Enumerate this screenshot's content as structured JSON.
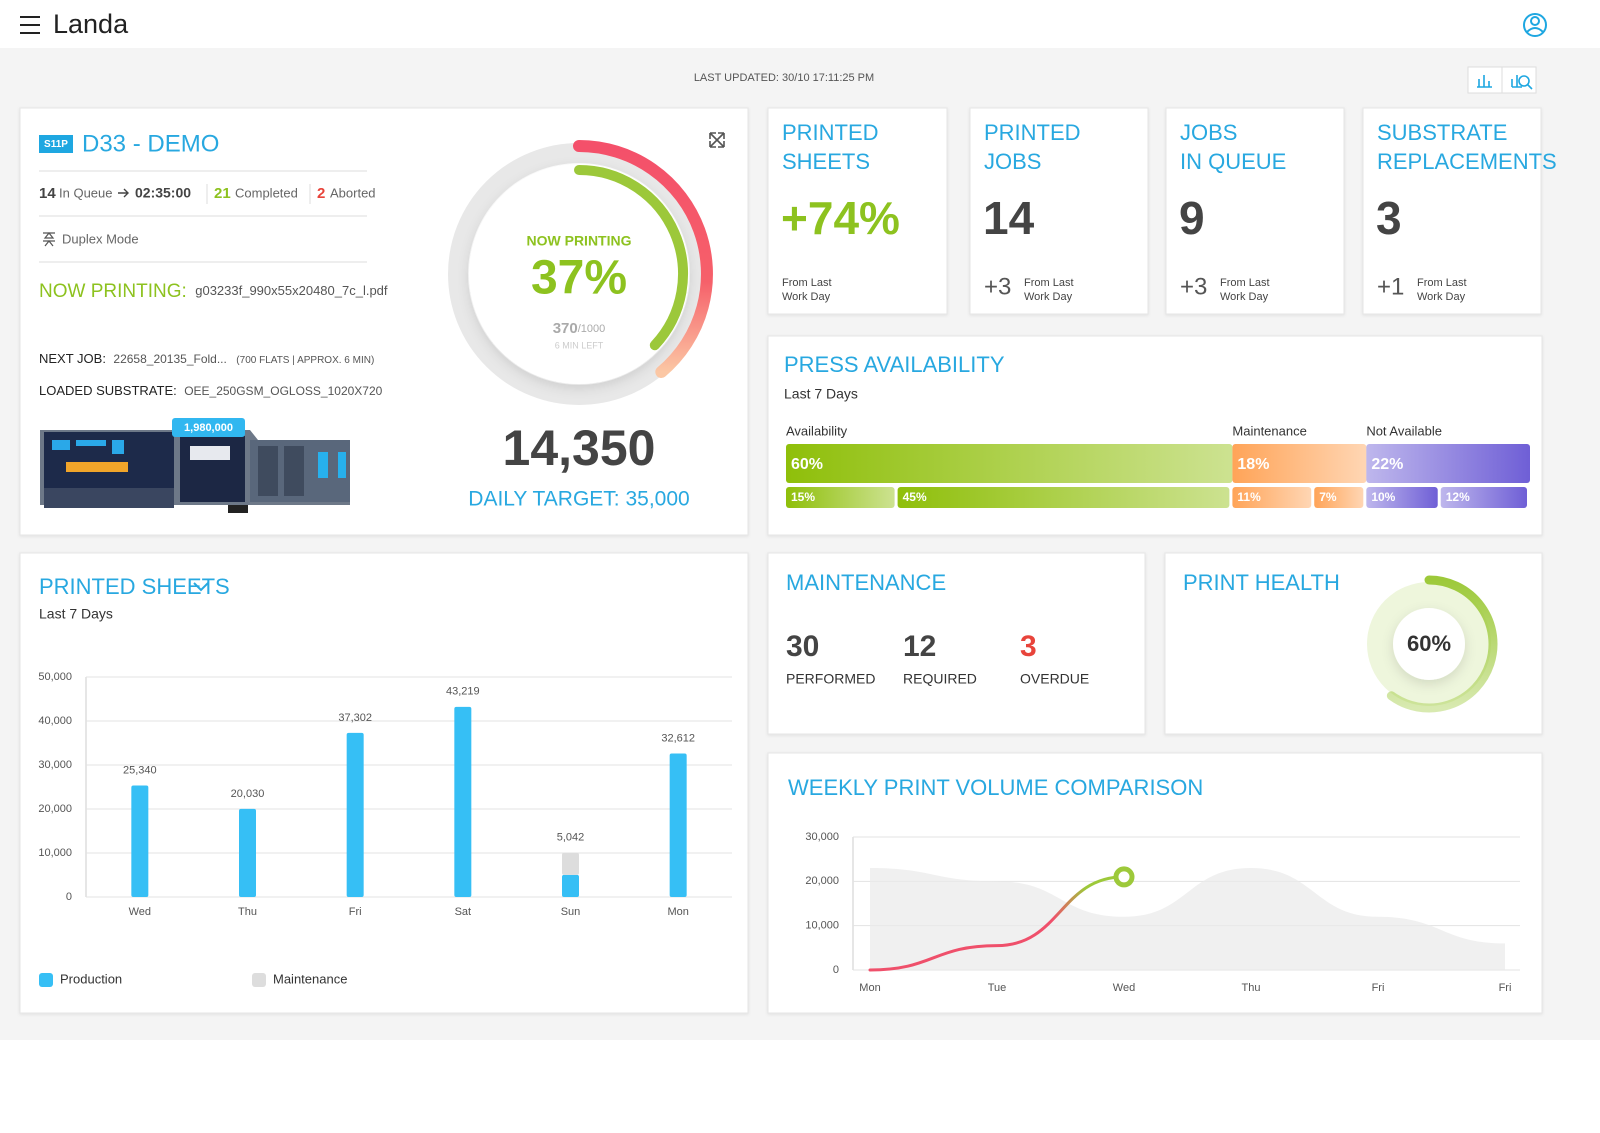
{
  "header": {
    "brand": "Landa"
  },
  "last_updated": "LAST UPDATED: 30/10 17:11:25 PM",
  "press": {
    "badge": "S11P",
    "name": "D33 - DEMO",
    "in_queue": 14,
    "in_queue_label": "In Queue",
    "time": "02:35:00",
    "completed": 21,
    "completed_label": "Completed",
    "aborted": 2,
    "aborted_label": "Aborted",
    "mode": "Duplex Mode",
    "now_printing_label": "NOW PRINTING:",
    "now_printing_file": "g03233f_990x55x20480_7c_l.pdf",
    "next_job_label": "NEXT JOB:",
    "next_job": "22658_20135_Fold...",
    "next_job_detail": "(700 FLATS | APPROX. 6 MIN)",
    "substrate_label": "LOADED SUBSTRATE:",
    "substrate": "OEE_250GSM_OGLOSS_1020X720",
    "counter": "1,980,000",
    "gauge": {
      "label": "NOW PRINTING",
      "percent": 37,
      "percent_label": "37%",
      "done": 370,
      "total_label": "/1000",
      "time_left": "6 MIN LEFT",
      "color": "#9cc83a"
    },
    "sheets": "14,350",
    "target": "DAILY TARGET: 35,000"
  },
  "kpis": [
    {
      "title": [
        "PRINTED",
        "SHEETS"
      ],
      "value": "+74%",
      "note": [
        "From Last",
        "Work Day"
      ],
      "color": "#8dc21f"
    },
    {
      "title": [
        "PRINTED",
        "JOBS"
      ],
      "value": "14",
      "delta": "+3",
      "note": [
        "From Last",
        "Work Day"
      ]
    },
    {
      "title": [
        "JOBS",
        "IN QUEUE"
      ],
      "value": "9",
      "delta": "+3",
      "note": [
        "From Last",
        "Work Day"
      ]
    },
    {
      "title": [
        "SUBSTRATE",
        "REPLACEMENTS"
      ],
      "value": "3",
      "delta": "+1",
      "note": [
        "From Last",
        "Work Day"
      ]
    }
  ],
  "availability": {
    "type": "stacked-bar",
    "title": "PRESS AVAILABILITY",
    "subtitle": "Last 7 Days",
    "groups": [
      {
        "name": "Availability",
        "value": 60,
        "label": "60%",
        "color": "#8fbf0a",
        "parts": [
          {
            "value": 15,
            "label": "15%"
          },
          {
            "value": 45,
            "label": "45%"
          }
        ]
      },
      {
        "name": "Maintenance",
        "value": 18,
        "label": "18%",
        "color": "#ffa458",
        "parts": [
          {
            "value": 11,
            "label": "11%"
          },
          {
            "value": 7,
            "label": "7%"
          }
        ]
      },
      {
        "name": "Not Available",
        "value": 22,
        "label": "22%",
        "color": "#6f5fd6",
        "parts": [
          {
            "value": 10,
            "label": "10%"
          },
          {
            "value": 12,
            "label": "12%"
          }
        ]
      }
    ]
  },
  "printed_sheets": {
    "type": "bar",
    "title": "PRINTED SHEETS",
    "subtitle": "Last 7 Days",
    "categories": [
      "Wed",
      "Thu",
      "Fri",
      "Sat",
      "Sun",
      "Mon"
    ],
    "series": [
      {
        "name": "Production",
        "color": "#36bff5",
        "values": [
          25340,
          20030,
          37302,
          43219,
          5042,
          32612
        ],
        "value_labels": [
          "25,340",
          "20,030",
          "37,302",
          "43,219",
          "5,042",
          "32,612"
        ]
      },
      {
        "name": "Maintenance",
        "color": "#dddddd",
        "values": [
          0,
          0,
          0,
          0,
          5000,
          0
        ]
      }
    ],
    "ylim": [
      0,
      50000
    ],
    "yticks": [
      0,
      {
        "value": 10000,
        "label": "10,000"
      },
      {
        "value": 20000,
        "label": "20,000"
      },
      {
        "value": 30000,
        "label": "30,000"
      },
      {
        "value": 40000,
        "label": "40,000"
      },
      {
        "value": 50000,
        "label": "50,000"
      }
    ],
    "grid": true,
    "legend": "bottom-left"
  },
  "maintenance": {
    "title": "MAINTENANCE",
    "items": [
      {
        "value": "30",
        "label": "PERFORMED"
      },
      {
        "value": "12",
        "label": "REQUIRED"
      },
      {
        "value": "3",
        "label": "OVERDUE",
        "color": "#e8443b"
      }
    ]
  },
  "print_health": {
    "title": "PRINT HEALTH",
    "value": 60,
    "label": "60%",
    "color": "#9dc93a"
  },
  "weekly": {
    "type": "line",
    "title": "WEEKLY PRINT VOLUME COMPARISON",
    "categories": [
      "Mon",
      "Tue",
      "Wed",
      "Thu",
      "Fri",
      "Fri"
    ],
    "series": [
      {
        "color": "#e9e9e9",
        "fill": true,
        "values": [
          23000,
          20000,
          12000,
          23000,
          12000,
          6000
        ]
      },
      {
        "color": "#ef506b",
        "end_color": "#9dc93a",
        "values": [
          0,
          5500,
          21000,
          null,
          null,
          null
        ]
      }
    ],
    "ylim": [
      0,
      30000
    ],
    "yticks": [
      0,
      {
        "value": 10000,
        "label": "10,000"
      },
      {
        "value": 20000,
        "label": "20,000"
      },
      {
        "value": 30000,
        "label": "30,000"
      }
    ],
    "grid": true
  }
}
